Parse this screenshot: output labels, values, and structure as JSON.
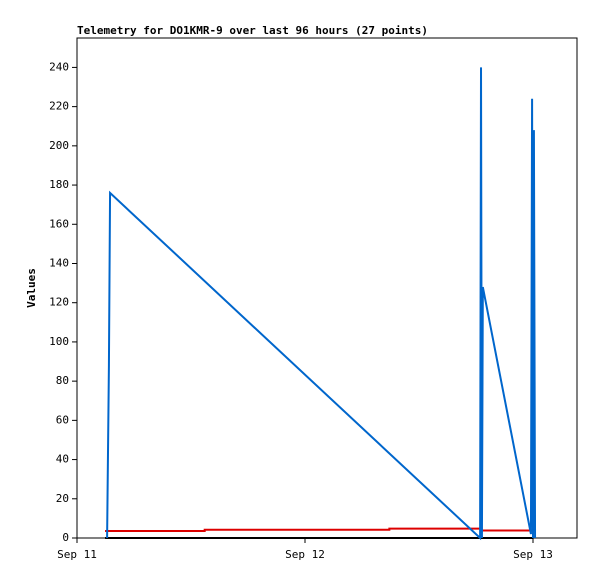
{
  "chart_data": {
    "type": "line",
    "title": "Telemetry for DO1KMR-9 over last 96 hours (27 points)",
    "y_label": "Values",
    "xlim": [
      0,
      2.193
    ],
    "xticks": [
      {
        "value": 0,
        "label": "Sep 11"
      },
      {
        "value": 1,
        "label": "Sep 12"
      },
      {
        "value": 2,
        "label": "Sep 13"
      }
    ],
    "ylim": [
      0,
      255
    ],
    "yticks": [
      0,
      20,
      40,
      60,
      80,
      100,
      120,
      140,
      160,
      180,
      200,
      220,
      240
    ],
    "grid": false,
    "series": [
      {
        "color": "#000000",
        "x": [
          0.123,
          2.0
        ],
        "values": [
          0,
          0
        ]
      },
      {
        "color": "#dd0000",
        "x": [
          0.123,
          0.56,
          0.56,
          1.37,
          1.37,
          1.77,
          1.77,
          2.0
        ],
        "values": [
          3.6,
          3.6,
          4.2,
          4.2,
          4.8,
          4.8,
          3.8,
          3.8
        ]
      },
      {
        "color": "#0066cc",
        "x": [
          0.132,
          0.14,
          0.145,
          1.768,
          1.772,
          1.776,
          1.78,
          1.991,
          1.996,
          2.0,
          2.004,
          2.009
        ],
        "values": [
          0,
          88,
          176,
          0,
          240,
          0,
          128,
          2,
          224,
          0,
          208,
          0
        ]
      }
    ]
  }
}
